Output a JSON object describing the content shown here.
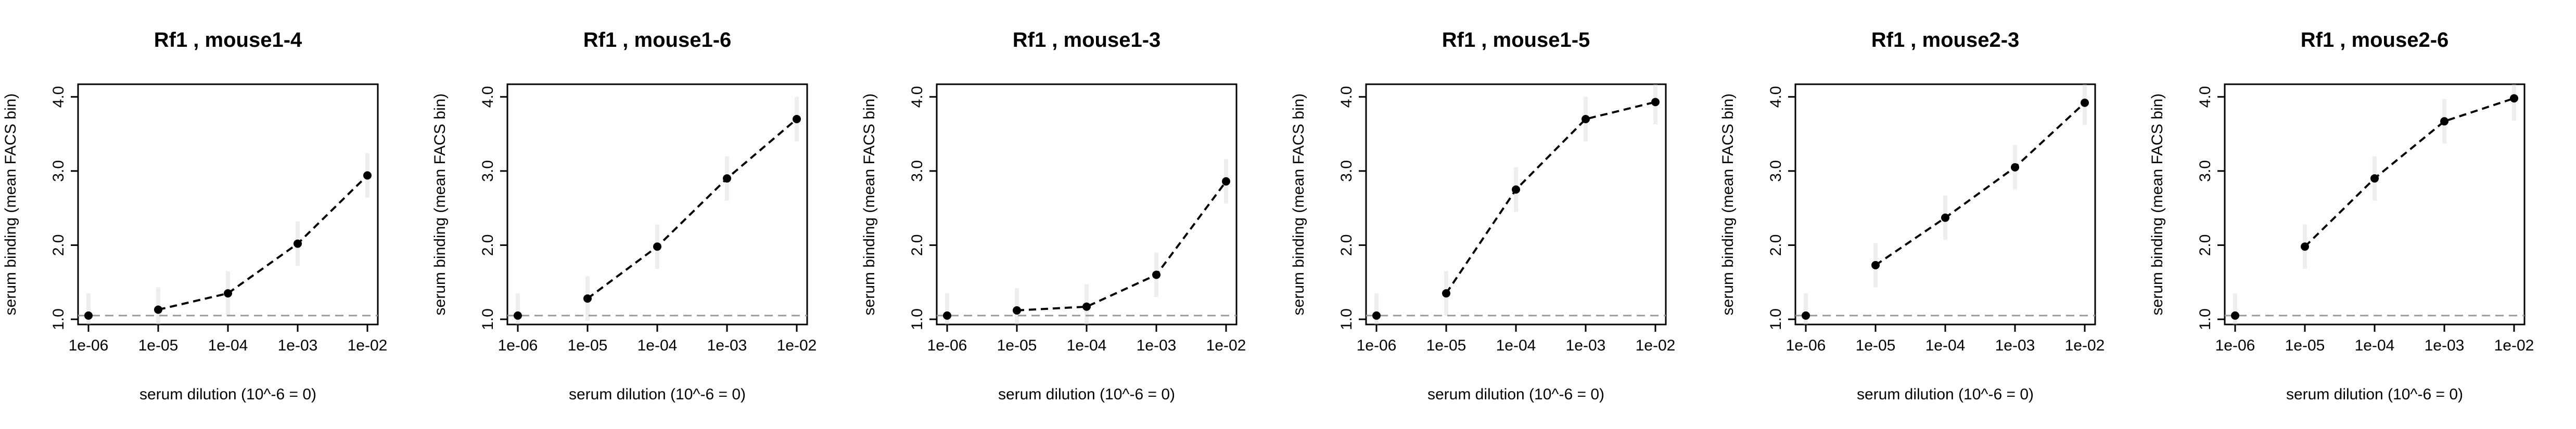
{
  "chart_data": [
    {
      "type": "line",
      "title": "Rf1 , mouse1-4",
      "xlabel": "serum dilution (10^-6 = 0)",
      "ylabel": "serum binding (mean FACS bin)",
      "x_scale": "log",
      "x": [
        1e-06,
        1e-05,
        0.0001,
        0.001,
        0.01
      ],
      "x_tick_labels": [
        "1e-06",
        "1e-05",
        "1e-04",
        "1e-03",
        "1e-02"
      ],
      "y_ticks": [
        1,
        2,
        3,
        4
      ],
      "y_tick_labels": [
        "1.0",
        "2.0",
        "3.0",
        "4.0"
      ],
      "ylim": [
        0.93,
        4.17
      ],
      "baseline": 1.05,
      "values": [
        1.05,
        1.13,
        1.35,
        2.02,
        2.94
      ]
    },
    {
      "type": "line",
      "title": "Rf1 , mouse1-6",
      "xlabel": "serum dilution (10^-6 = 0)",
      "ylabel": "serum binding (mean FACS bin)",
      "x_scale": "log",
      "x": [
        1e-06,
        1e-05,
        0.0001,
        0.001,
        0.01
      ],
      "x_tick_labels": [
        "1e-06",
        "1e-05",
        "1e-04",
        "1e-03",
        "1e-02"
      ],
      "y_ticks": [
        1,
        2,
        3,
        4
      ],
      "y_tick_labels": [
        "1.0",
        "2.0",
        "3.0",
        "4.0"
      ],
      "ylim": [
        0.93,
        4.17
      ],
      "baseline": 1.05,
      "values": [
        1.05,
        1.28,
        1.98,
        2.9,
        3.7
      ]
    },
    {
      "type": "line",
      "title": "Rf1 , mouse1-3",
      "xlabel": "serum dilution (10^-6 = 0)",
      "ylabel": "serum binding (mean FACS bin)",
      "x_scale": "log",
      "x": [
        1e-06,
        1e-05,
        0.0001,
        0.001,
        0.01
      ],
      "x_tick_labels": [
        "1e-06",
        "1e-05",
        "1e-04",
        "1e-03",
        "1e-02"
      ],
      "y_ticks": [
        1,
        2,
        3,
        4
      ],
      "y_tick_labels": [
        "1.0",
        "2.0",
        "3.0",
        "4.0"
      ],
      "ylim": [
        0.93,
        4.17
      ],
      "baseline": 1.05,
      "values": [
        1.05,
        1.12,
        1.17,
        1.6,
        2.86
      ]
    },
    {
      "type": "line",
      "title": "Rf1 , mouse1-5",
      "xlabel": "serum dilution (10^-6 = 0)",
      "ylabel": "serum binding (mean FACS bin)",
      "x_scale": "log",
      "x": [
        1e-06,
        1e-05,
        0.0001,
        0.001,
        0.01
      ],
      "x_tick_labels": [
        "1e-06",
        "1e-05",
        "1e-04",
        "1e-03",
        "1e-02"
      ],
      "y_ticks": [
        1,
        2,
        3,
        4
      ],
      "y_tick_labels": [
        "1.0",
        "2.0",
        "3.0",
        "4.0"
      ],
      "ylim": [
        0.93,
        4.17
      ],
      "baseline": 1.05,
      "values": [
        1.05,
        1.35,
        2.75,
        3.7,
        3.93
      ]
    },
    {
      "type": "line",
      "title": "Rf1 , mouse2-3",
      "xlabel": "serum dilution (10^-6 = 0)",
      "ylabel": "serum binding (mean FACS bin)",
      "x_scale": "log",
      "x": [
        1e-06,
        1e-05,
        0.0001,
        0.001,
        0.01
      ],
      "x_tick_labels": [
        "1e-06",
        "1e-05",
        "1e-04",
        "1e-03",
        "1e-02"
      ],
      "y_ticks": [
        1,
        2,
        3,
        4
      ],
      "y_tick_labels": [
        "1.0",
        "2.0",
        "3.0",
        "4.0"
      ],
      "ylim": [
        0.93,
        4.17
      ],
      "baseline": 1.05,
      "values": [
        1.05,
        1.73,
        2.37,
        3.05,
        3.92
      ]
    },
    {
      "type": "line",
      "title": "Rf1 , mouse2-6",
      "xlabel": "serum dilution (10^-6 = 0)",
      "ylabel": "serum binding (mean FACS bin)",
      "x_scale": "log",
      "x": [
        1e-06,
        1e-05,
        0.0001,
        0.001,
        0.01
      ],
      "x_tick_labels": [
        "1e-06",
        "1e-05",
        "1e-04",
        "1e-03",
        "1e-02"
      ],
      "y_ticks": [
        1,
        2,
        3,
        4
      ],
      "y_tick_labels": [
        "1.0",
        "2.0",
        "3.0",
        "4.0"
      ],
      "ylim": [
        0.93,
        4.17
      ],
      "baseline": 1.05,
      "values": [
        1.05,
        1.98,
        2.9,
        3.67,
        3.98
      ]
    }
  ]
}
